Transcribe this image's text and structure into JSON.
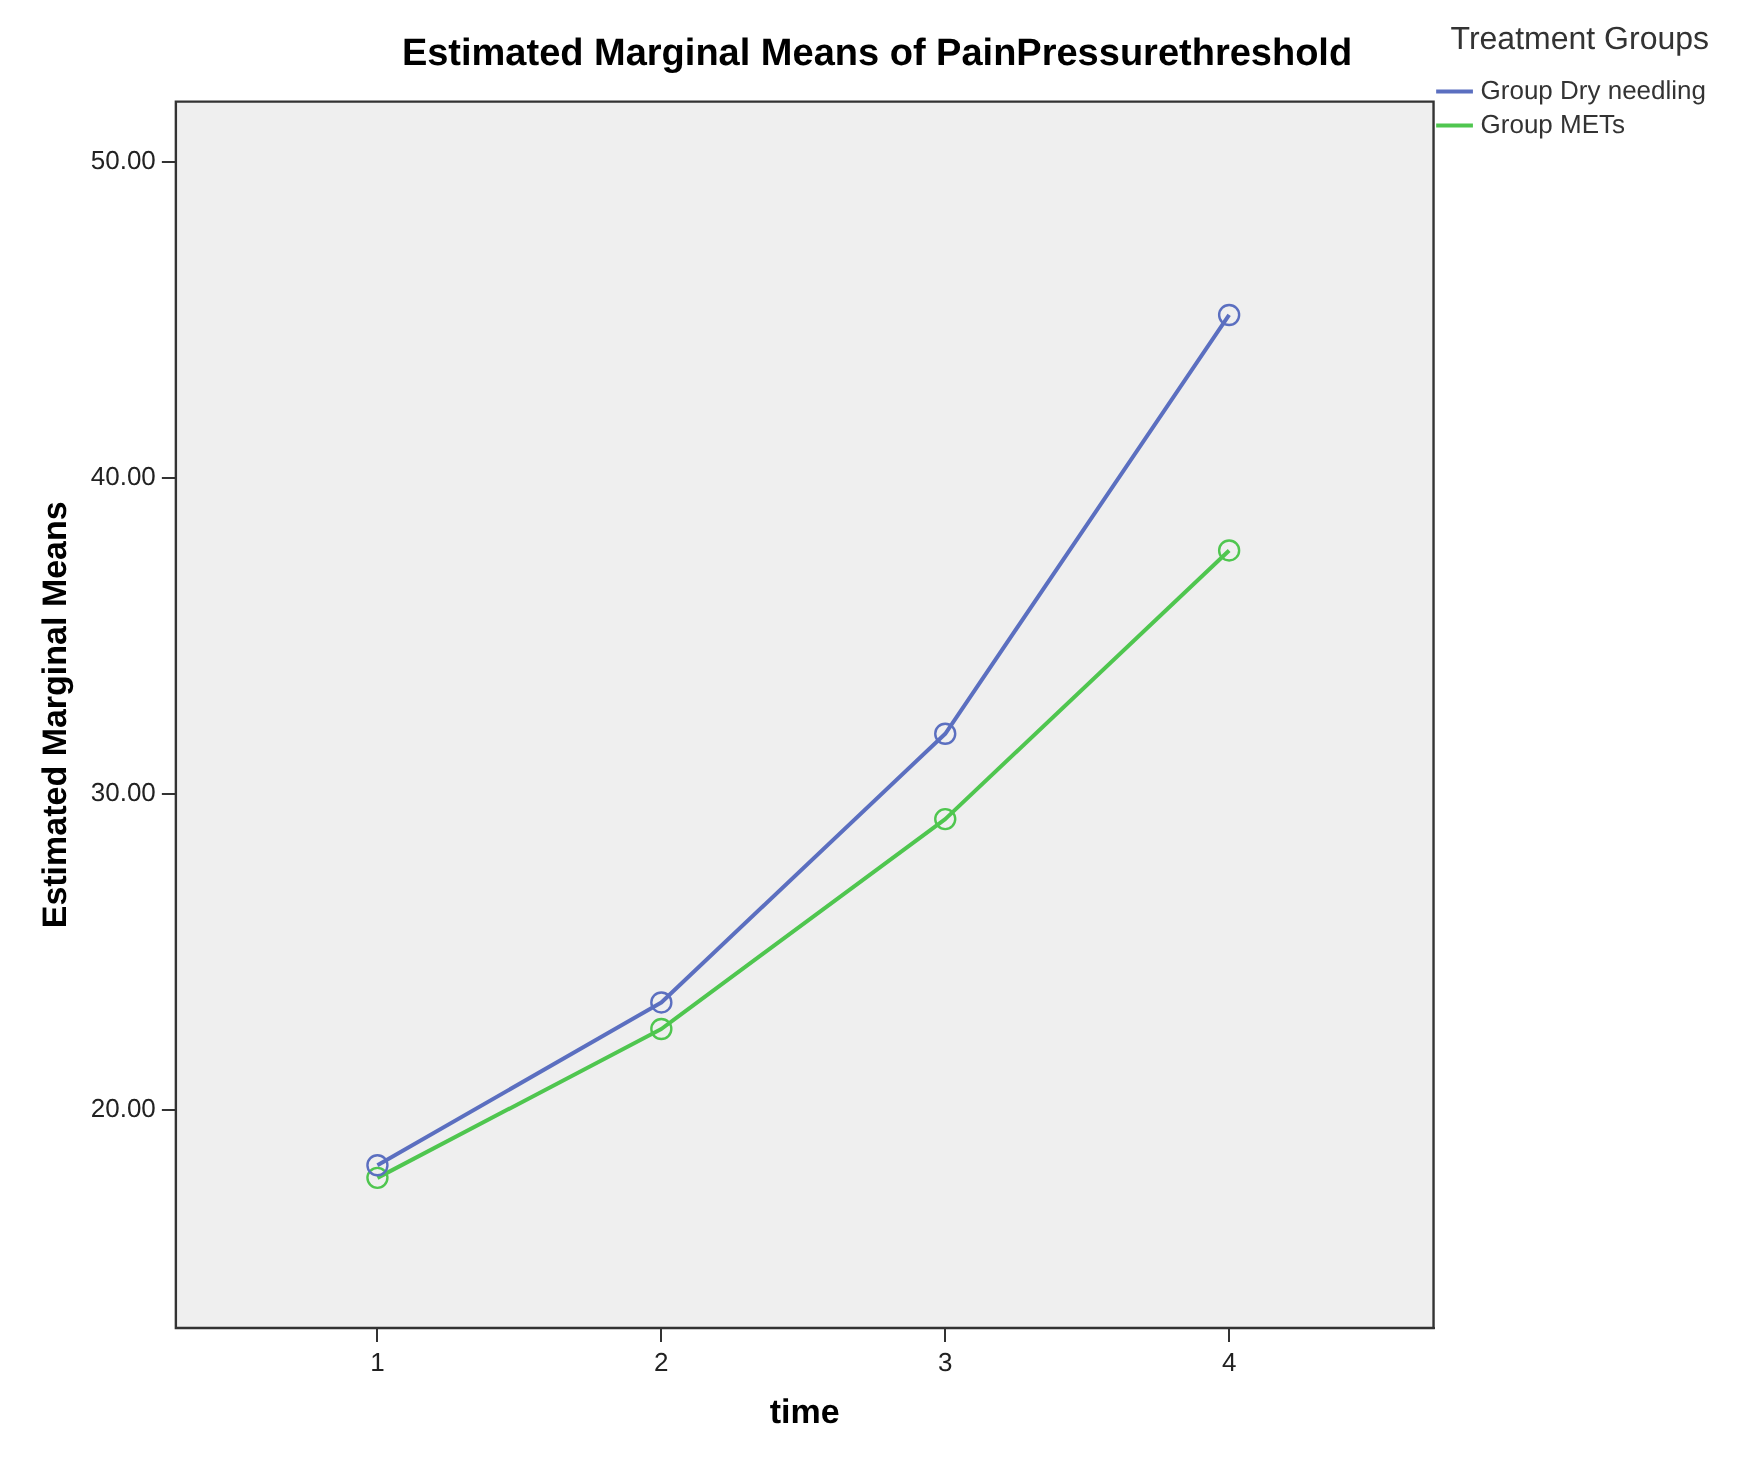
{
  "chart_data": {
    "type": "line",
    "title": "Estimated Marginal Means of PainPressurethreshold",
    "xlabel": "time",
    "ylabel": "Estimated Marginal Means",
    "legend_title": "Treatment Groups",
    "x": [
      1,
      2,
      3,
      4
    ],
    "xlim": [
      0.29,
      4.72
    ],
    "xticks": [
      1,
      2,
      3,
      4
    ],
    "ylim": [
      13.1,
      51.9
    ],
    "yticks": [
      {
        "value": 20,
        "label": "20.00"
      },
      {
        "value": 30,
        "label": "30.00"
      },
      {
        "value": 40,
        "label": "40.00"
      },
      {
        "value": 50,
        "label": "50.00"
      }
    ],
    "series": [
      {
        "name": "Group Dry needling",
        "color": "#5b6fc0",
        "values": [
          18.25,
          23.4,
          31.9,
          45.15
        ]
      },
      {
        "name": "Group METs",
        "color": "#4fc64f",
        "values": [
          17.85,
          22.56,
          29.2,
          37.7
        ]
      }
    ],
    "marker": "circle",
    "line_style": "solid",
    "grid": false,
    "legend": "top right"
  }
}
